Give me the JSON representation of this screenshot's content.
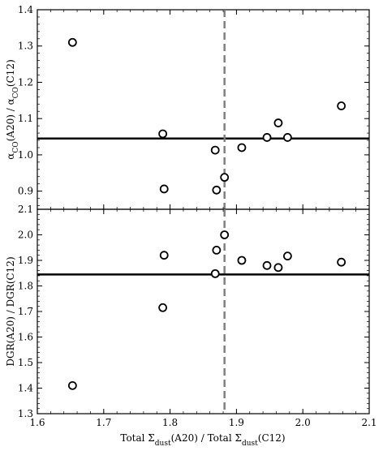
{
  "chart_data": [
    {
      "type": "scatter",
      "panel": "top",
      "ylabel": "αCO(A20) / αCO(C12)",
      "ylabel_parts": [
        "α",
        "CO",
        "(A20) / α",
        "CO",
        "(C12)"
      ],
      "xlim": [
        1.6,
        2.1
      ],
      "ylim": [
        0.85,
        1.4
      ],
      "yticks": [
        "0.9",
        "1.0",
        "1.1",
        "1.2",
        "1.3",
        "1.4"
      ],
      "ytick_values": [
        0.9,
        1.0,
        1.1,
        1.2,
        1.3,
        1.4
      ],
      "hline": 1.045,
      "vline": 1.882,
      "points": [
        {
          "x": 1.653,
          "y": 1.31
        },
        {
          "x": 1.789,
          "y": 1.058
        },
        {
          "x": 1.791,
          "y": 0.906
        },
        {
          "x": 1.868,
          "y": 1.013
        },
        {
          "x": 1.87,
          "y": 0.903
        },
        {
          "x": 1.882,
          "y": 0.938
        },
        {
          "x": 1.908,
          "y": 1.02
        },
        {
          "x": 1.946,
          "y": 1.048
        },
        {
          "x": 1.963,
          "y": 1.088
        },
        {
          "x": 1.977,
          "y": 1.048
        },
        {
          "x": 2.058,
          "y": 1.135
        }
      ]
    },
    {
      "type": "scatter",
      "panel": "bottom",
      "ylabel": "DGR(A20) / DGR(C12)",
      "xlabel": "Total Σdust(A20) / Total Σdust(C12)",
      "xlabel_parts": [
        "Total Σ",
        "dust",
        "(A20) / Total Σ",
        "dust",
        "(C12)"
      ],
      "xlim": [
        1.6,
        2.1
      ],
      "ylim": [
        1.3,
        2.1
      ],
      "xticks": [
        "1.6",
        "1.7",
        "1.8",
        "1.9",
        "2.0",
        "2.1"
      ],
      "xtick_values": [
        1.6,
        1.7,
        1.8,
        1.9,
        2.0,
        2.1
      ],
      "yticks": [
        "1.3",
        "1.4",
        "1.5",
        "1.6",
        "1.7",
        "1.8",
        "1.9",
        "2.0",
        "2.1"
      ],
      "ytick_values": [
        1.3,
        1.4,
        1.5,
        1.6,
        1.7,
        1.8,
        1.9,
        2.0,
        2.1
      ],
      "hline": 1.845,
      "vline": 1.882,
      "points": [
        {
          "x": 1.653,
          "y": 1.41
        },
        {
          "x": 1.789,
          "y": 1.715
        },
        {
          "x": 1.791,
          "y": 1.92
        },
        {
          "x": 1.868,
          "y": 1.848
        },
        {
          "x": 1.87,
          "y": 1.94
        },
        {
          "x": 1.882,
          "y": 2.0
        },
        {
          "x": 1.908,
          "y": 1.9
        },
        {
          "x": 1.946,
          "y": 1.88
        },
        {
          "x": 1.963,
          "y": 1.872
        },
        {
          "x": 1.977,
          "y": 1.917
        },
        {
          "x": 2.058,
          "y": 1.893
        }
      ]
    }
  ]
}
